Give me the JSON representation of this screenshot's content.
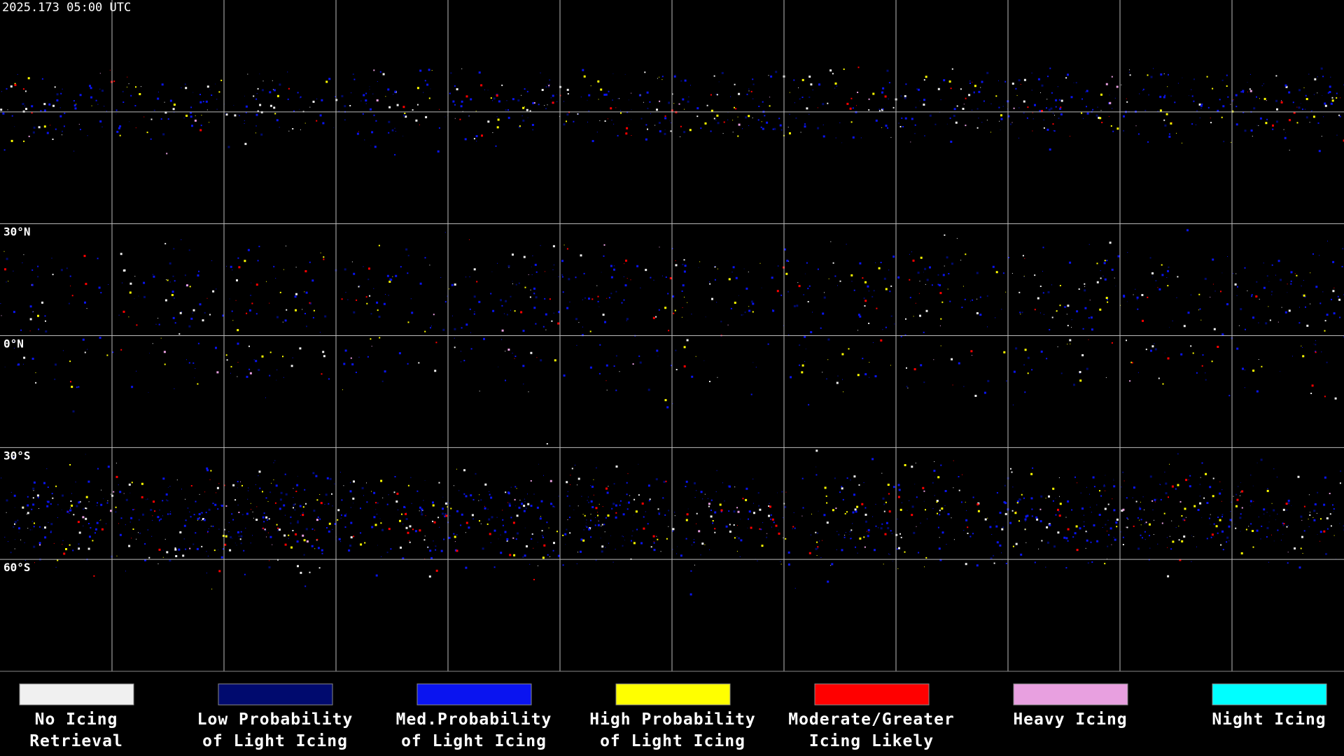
{
  "timestamp": "2025.173 05:00 UTC",
  "latitude_labels": [
    "30°N",
    "0°N",
    "30°S",
    "60°S"
  ],
  "legend": [
    {
      "lines": [
        "No Icing",
        "Retrieval"
      ],
      "color": "#f0f0f0"
    },
    {
      "lines": [
        "Low Probability",
        "of Light Icing"
      ],
      "color": "#000a6e"
    },
    {
      "lines": [
        "Med.Probability",
        "of Light Icing"
      ],
      "color": "#0a14f0"
    },
    {
      "lines": [
        "High Probability",
        "of Light Icing"
      ],
      "color": "#ffff00"
    },
    {
      "lines": [
        "Moderate/Greater",
        "Icing Likely"
      ],
      "color": "#ff0000"
    },
    {
      "lines": [
        "Heavy Icing"
      ],
      "color": "#e8a0e0"
    },
    {
      "lines": [
        "Night Icing"
      ],
      "color": "#00ffff"
    }
  ]
}
